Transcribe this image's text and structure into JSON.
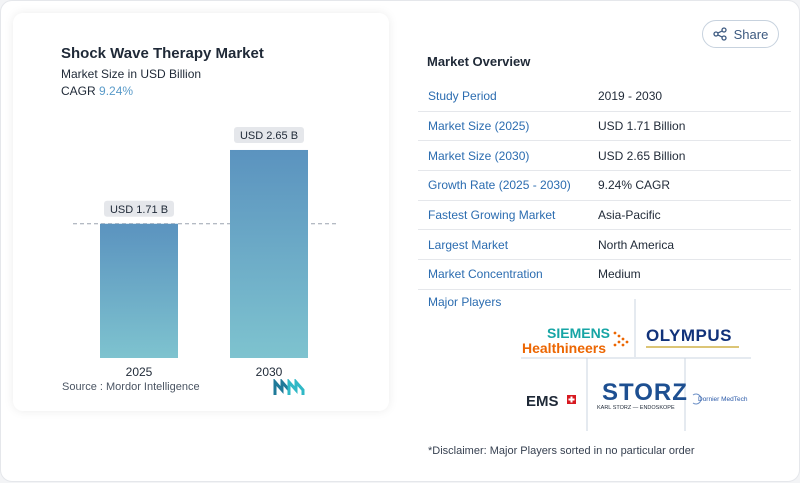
{
  "chart_data": {
    "type": "bar",
    "title": "Shock Wave Therapy Market",
    "subtitle": "Market Size in USD Billion",
    "cagr_label": "CAGR",
    "cagr_value": "9.24%",
    "categories": [
      "2025",
      "2030"
    ],
    "values": [
      1.71,
      2.65
    ],
    "value_labels": [
      "USD 1.71 B",
      "USD 2.65 B"
    ],
    "bar_color_top": "#5b93bf",
    "bar_color_bottom": "#7ec3cf"
  },
  "source": "Source :  Mordor Intelligence",
  "share_label": "Share",
  "overview": {
    "title": "Market Overview",
    "rows": [
      {
        "label": "Study Period",
        "value": "2019 - 2030"
      },
      {
        "label": "Market Size (2025)",
        "value": "USD 1.71 Billion"
      },
      {
        "label": "Market Size (2030)",
        "value": "USD 2.65 Billion"
      },
      {
        "label": "Growth Rate (2025 - 2030)",
        "value": "9.24% CAGR"
      },
      {
        "label": "Fastest Growing Market",
        "value": "Asia-Pacific"
      },
      {
        "label": "Largest Market",
        "value": "North America"
      },
      {
        "label": "Market Concentration",
        "value": "Medium"
      }
    ]
  },
  "players": {
    "title": "Major Players",
    "siemens_line1": "SIEMENS",
    "siemens_line2": "Healthineers",
    "olympus": "OLYMPUS",
    "ems": "EMS",
    "storz": "STORZ",
    "storz_sub": "KARL STORZ — ENDOSKOPE",
    "dornier": "Dornier MedTech"
  },
  "disclaimer": "*Disclaimer: Major Players sorted in no particular order"
}
